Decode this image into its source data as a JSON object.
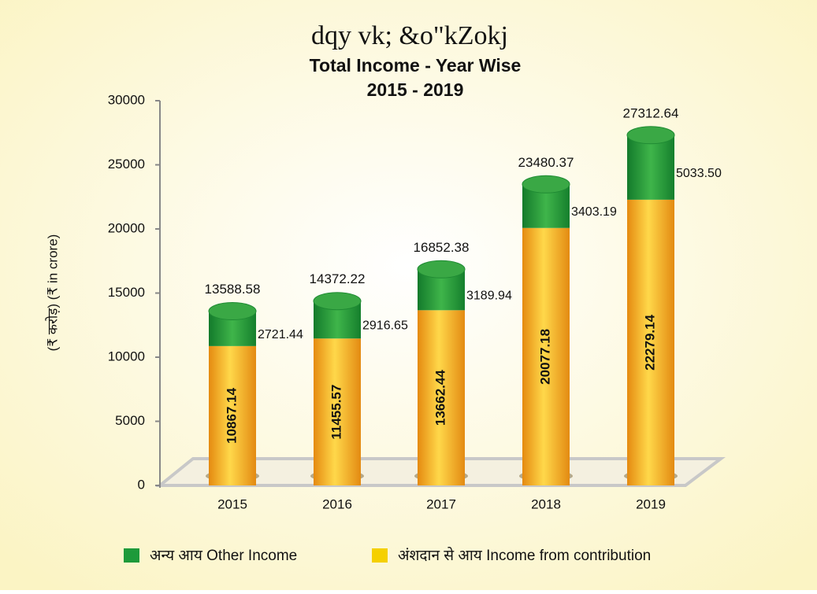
{
  "chart_data": {
    "type": "bar",
    "title_local": "dqy vk; &o\"kZokj",
    "title": "Total Income - Year Wise",
    "subtitle": "2015 - 2019",
    "y_label": "(₹ करोड़) (₹ in crore)",
    "categories": [
      "2015",
      "2016",
      "2017",
      "2018",
      "2019"
    ],
    "series": [
      {
        "name": "अंशदान से आय Income from contribution",
        "color": "#f5b800",
        "values": [
          10867.14,
          11455.57,
          13662.44,
          20077.18,
          22279.14
        ]
      },
      {
        "name": "अन्य आय Other Income",
        "color": "#1e9a3a",
        "values": [
          2721.44,
          2916.65,
          3189.94,
          3403.19,
          5033.5
        ],
        "value_labels": [
          "2721.44",
          "2916.65",
          "3189.94",
          "3403.19",
          "5033.50"
        ]
      }
    ],
    "totals": [
      13588.58,
      14372.22,
      16852.38,
      23480.37,
      27312.64
    ],
    "ylim": [
      0,
      30000
    ],
    "yticks": [
      0,
      5000,
      10000,
      15000,
      20000,
      25000,
      30000
    ],
    "grid": false,
    "stacked": true
  }
}
